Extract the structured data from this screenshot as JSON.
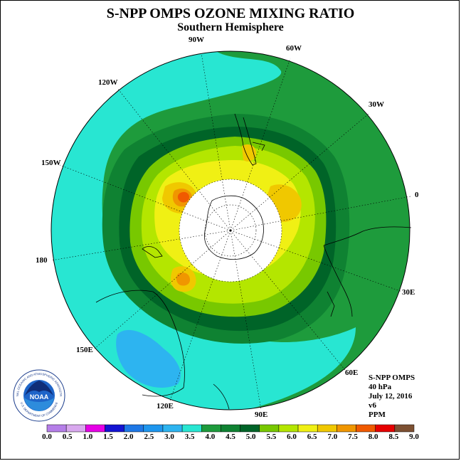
{
  "title": "S-NPP OMPS OZONE MIXING RATIO",
  "subtitle": "Southern Hemisphere",
  "longitude_labels": {
    "lon_90w": "90W",
    "lon_60w": "60W",
    "lon_30w": "30W",
    "lon_0": "0",
    "lon_30e": "30E",
    "lon_60e": "60E",
    "lon_90e": "90E",
    "lon_120e": "120E",
    "lon_150e": "150E",
    "lon_180": "180",
    "lon_150w": "150W",
    "lon_120w": "120W"
  },
  "info": {
    "instrument": "S-NPP OMPS",
    "level": "40 hPa",
    "date": "July 12, 2016",
    "version": "v6",
    "units": "PPM"
  },
  "colorbar": {
    "labels": [
      "0.0",
      "0.5",
      "1.0",
      "1.5",
      "2.0",
      "2.5",
      "3.0",
      "3.5",
      "4.0",
      "4.5",
      "5.0",
      "5.5",
      "6.0",
      "6.5",
      "7.0",
      "7.5",
      "8.0",
      "8.5",
      "9.0"
    ],
    "colors": [
      "#b57ee8",
      "#d8a8ee",
      "#e600e6",
      "#1414d2",
      "#1e78e6",
      "#1e96ee",
      "#2db4f0",
      "#28e6d2",
      "#1e9b3c",
      "#0f8232",
      "#006428",
      "#78c800",
      "#b4e600",
      "#f0f014",
      "#f0c800",
      "#f09600",
      "#f05a00",
      "#e60000",
      "#7d5032"
    ]
  },
  "logo": {
    "text": "NOAA",
    "ring_text": "NATIONAL OCEANIC AND ATMOSPHERIC ADMINISTRATION",
    "dept_text": "U.S. DEPARTMENT OF COMMERCE"
  },
  "colors": {
    "band_3_5_4_0": "#28e6d2",
    "band_4_0_4_5": "#1e9b3c",
    "band_4_5_5_0": "#0f8232",
    "band_5_0_5_5": "#006428",
    "band_5_5_6_0": "#78c800",
    "band_6_0_6_5": "#b4e600",
    "band_6_5_7_0": "#f0f014",
    "band_7_0_7_5": "#f0c800",
    "band_7_5_8_0": "#f09600",
    "band_8_0_8_5": "#f05a00"
  }
}
